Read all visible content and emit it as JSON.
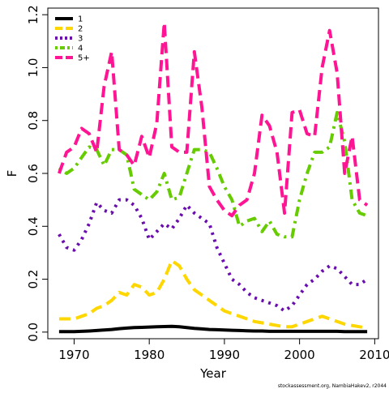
{
  "chart_data": {
    "type": "line",
    "xlabel": "Year",
    "ylabel": "F",
    "xlim": [
      1966.5,
      2010.5
    ],
    "ylim": [
      -0.025,
      1.225
    ],
    "xticks": [
      1970,
      1980,
      1990,
      2000,
      2010
    ],
    "xtick_labels": [
      "1970",
      "1980",
      "1990",
      "2000",
      "2010"
    ],
    "yticks": [
      0.0,
      0.2,
      0.4,
      0.6,
      0.8,
      1.0,
      1.2
    ],
    "ytick_labels": [
      "0.0",
      "0.2",
      "0.4",
      "0.6",
      "0.8",
      "1.0",
      "1.2"
    ],
    "grid": false,
    "legend_position": "top-left",
    "x": [
      1968,
      1969,
      1970,
      1971,
      1972,
      1973,
      1974,
      1975,
      1976,
      1977,
      1978,
      1979,
      1980,
      1981,
      1982,
      1983,
      1984,
      1985,
      1986,
      1987,
      1988,
      1989,
      1990,
      1991,
      1992,
      1993,
      1994,
      1995,
      1996,
      1997,
      1998,
      1999,
      2000,
      2001,
      2002,
      2003,
      2004,
      2005,
      2006,
      2007,
      2008,
      2009
    ],
    "series": [
      {
        "name": "1",
        "color": "#000000",
        "dash": "solid",
        "values": [
          0.002,
          0.002,
          0.002,
          0.003,
          0.004,
          0.006,
          0.008,
          0.01,
          0.013,
          0.015,
          0.017,
          0.018,
          0.019,
          0.02,
          0.021,
          0.022,
          0.02,
          0.017,
          0.014,
          0.012,
          0.01,
          0.009,
          0.008,
          0.007,
          0.006,
          0.005,
          0.004,
          0.004,
          0.003,
          0.003,
          0.003,
          0.003,
          0.003,
          0.003,
          0.003,
          0.003,
          0.003,
          0.003,
          0.002,
          0.002,
          0.002,
          0.002
        ]
      },
      {
        "name": "2",
        "color": "#FFD700",
        "dash": "longdash",
        "values": [
          0.05,
          0.05,
          0.05,
          0.06,
          0.07,
          0.09,
          0.1,
          0.12,
          0.15,
          0.14,
          0.18,
          0.17,
          0.14,
          0.15,
          0.2,
          0.27,
          0.25,
          0.2,
          0.16,
          0.14,
          0.12,
          0.1,
          0.08,
          0.07,
          0.06,
          0.05,
          0.04,
          0.035,
          0.03,
          0.025,
          0.02,
          0.02,
          0.03,
          0.04,
          0.05,
          0.06,
          0.05,
          0.04,
          0.03,
          0.025,
          0.02,
          0.015
        ]
      },
      {
        "name": "3",
        "color": "#6A0DAD",
        "dash": "dotted",
        "values": [
          0.37,
          0.32,
          0.31,
          0.35,
          0.41,
          0.49,
          0.46,
          0.45,
          0.5,
          0.5,
          0.48,
          0.43,
          0.35,
          0.38,
          0.41,
          0.39,
          0.43,
          0.48,
          0.45,
          0.43,
          0.41,
          0.32,
          0.26,
          0.2,
          0.18,
          0.15,
          0.13,
          0.12,
          0.11,
          0.1,
          0.08,
          0.1,
          0.14,
          0.18,
          0.2,
          0.23,
          0.25,
          0.24,
          0.21,
          0.18,
          0.18,
          0.2
        ]
      },
      {
        "name": "4",
        "color": "#66CC00",
        "dash": "dotdash",
        "values": [
          0.62,
          0.6,
          0.62,
          0.66,
          0.7,
          0.69,
          0.63,
          0.69,
          0.69,
          0.67,
          0.54,
          0.52,
          0.5,
          0.53,
          0.6,
          0.5,
          0.51,
          0.6,
          0.69,
          0.69,
          0.68,
          0.62,
          0.55,
          0.5,
          0.4,
          0.42,
          0.43,
          0.38,
          0.42,
          0.37,
          0.36,
          0.36,
          0.5,
          0.6,
          0.68,
          0.68,
          0.7,
          0.83,
          0.72,
          0.5,
          0.45,
          0.44
        ]
      },
      {
        "name": "5+",
        "color": "#FF1493",
        "dash": "longdash",
        "values": [
          0.6,
          0.68,
          0.7,
          0.77,
          0.75,
          0.68,
          0.93,
          1.06,
          0.69,
          0.67,
          0.63,
          0.74,
          0.66,
          0.79,
          1.17,
          0.7,
          0.68,
          0.68,
          1.06,
          0.85,
          0.55,
          0.5,
          0.46,
          0.44,
          0.48,
          0.5,
          0.6,
          0.82,
          0.78,
          0.68,
          0.45,
          0.83,
          0.84,
          0.75,
          0.74,
          1.0,
          1.14,
          0.98,
          0.6,
          0.74,
          0.5,
          0.48
        ]
      }
    ]
  },
  "footer": {
    "credit": "stockassessment.org, NambiaHakev2, r2044"
  }
}
